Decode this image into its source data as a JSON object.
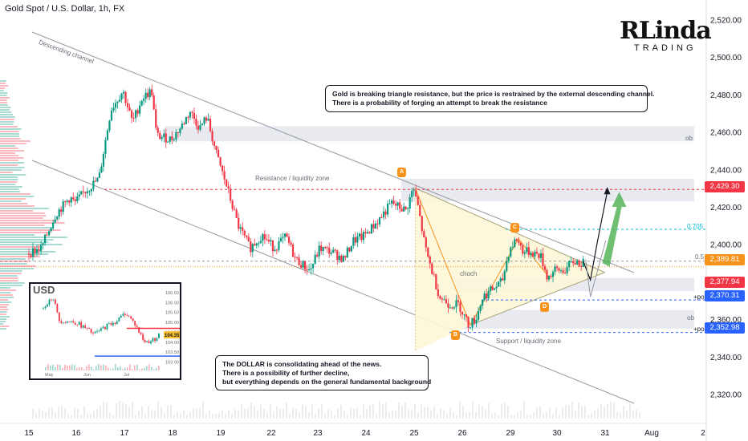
{
  "header": {
    "title": "Gold Spot / U.S. Dollar, 1h, FX"
  },
  "logo": {
    "main": "RLinda",
    "sub": "TRADING"
  },
  "colors": {
    "bull": "#089981",
    "bear": "#f23645",
    "triangle_fill": "#fdf7d8",
    "zone_fill": "#e0e3eb",
    "accent_orange": "#f7931a",
    "blue": "#2962ff",
    "green_arrow": "#4caf50"
  },
  "callouts": {
    "gold": {
      "line1": "Gold is breaking triangle resistance, but the price is restrained by the external descending channel.",
      "line2": "There is a probability of forging an attempt to break the resistance"
    },
    "dollar": {
      "line1": "The DOLLAR is consolidating ahead of the news.",
      "line2": "There is a possibility of further decline,",
      "line3": "but everything depends on the general fundamental background"
    }
  },
  "annotations": {
    "channel": "Descending channel",
    "resistance": "Resistance / liquidity zone",
    "support": "Support / liquidity zone",
    "choch": "choch",
    "ob1": "ob",
    "ob2": "ob",
    "fib_705": "0.705",
    "fib_05": "0.5",
    "poi1": "+poi",
    "poi2": "+poi",
    "point_a": "A",
    "point_b": "B",
    "point_c": "C",
    "point_d": "D"
  },
  "price_tags": [
    {
      "value": "2,429.30",
      "color": "#f23645"
    },
    {
      "value": "2,389.81",
      "color": "#f7931a"
    },
    {
      "value": "2,377.94",
      "color": "#f23645"
    },
    {
      "value": "2,370.31",
      "color": "#2962ff"
    },
    {
      "value": "2,352.98",
      "color": "#2962ff"
    }
  ],
  "inset": {
    "title": "USD",
    "price_tag": "104.35",
    "y_ticks": [
      "106.50",
      "106.00",
      "105.50",
      "105.00",
      "104.50",
      "104.00",
      "103.50",
      "103.00"
    ],
    "x_ticks": [
      "May",
      "Jun",
      "Jul"
    ]
  },
  "chart_data": {
    "type": "candlestick",
    "title": "Gold Spot / U.S. Dollar, 1h, FX",
    "x_ticks": [
      "15",
      "16",
      "17",
      "18",
      "19",
      "22",
      "23",
      "24",
      "25",
      "26",
      "29",
      "30",
      "31",
      "Aug",
      "2"
    ],
    "y_ticks": [
      2320,
      2340,
      2360,
      2380,
      2400,
      2420,
      2440,
      2460,
      2480,
      2500,
      2520
    ],
    "ylim": [
      2307,
      2527
    ],
    "price_path": [
      [
        0,
        2395
      ],
      [
        0.3,
        2398
      ],
      [
        0.6,
        2416
      ],
      [
        0.9,
        2425
      ],
      [
        1.0,
        2422
      ],
      [
        1.2,
        2428
      ],
      [
        1.5,
        2435
      ],
      [
        1.75,
        2472
      ],
      [
        2.0,
        2482
      ],
      [
        2.2,
        2465
      ],
      [
        2.4,
        2478
      ],
      [
        2.6,
        2482
      ],
      [
        2.7,
        2458
      ],
      [
        3.0,
        2456
      ],
      [
        3.2,
        2462
      ],
      [
        3.4,
        2471
      ],
      [
        3.6,
        2462
      ],
      [
        3.75,
        2468
      ],
      [
        3.95,
        2448
      ],
      [
        4.15,
        2432
      ],
      [
        4.4,
        2410
      ],
      [
        4.65,
        2398
      ],
      [
        4.9,
        2405
      ],
      [
        5.15,
        2398
      ],
      [
        5.4,
        2404
      ],
      [
        5.6,
        2392
      ],
      [
        5.9,
        2386
      ],
      [
        6.1,
        2398
      ],
      [
        6.35,
        2396
      ],
      [
        6.6,
        2392
      ],
      [
        6.8,
        2402
      ],
      [
        7.0,
        2404
      ],
      [
        7.3,
        2412
      ],
      [
        7.6,
        2422
      ],
      [
        7.9,
        2418
      ],
      [
        8.05,
        2430
      ],
      [
        8.15,
        2420
      ],
      [
        8.3,
        2398
      ],
      [
        8.45,
        2385
      ],
      [
        8.6,
        2372
      ],
      [
        8.8,
        2368
      ],
      [
        9.0,
        2368
      ],
      [
        9.2,
        2357
      ],
      [
        9.35,
        2360
      ],
      [
        9.5,
        2372
      ],
      [
        9.7,
        2376
      ],
      [
        9.9,
        2380
      ],
      [
        10.05,
        2397
      ],
      [
        10.2,
        2403
      ],
      [
        10.35,
        2396
      ],
      [
        10.5,
        2396
      ],
      [
        10.7,
        2394
      ],
      [
        10.85,
        2382
      ],
      [
        11.0,
        2386
      ],
      [
        11.2,
        2386
      ],
      [
        11.4,
        2391
      ],
      [
        11.55,
        2389.81
      ]
    ],
    "levels": [
      {
        "price": 2429.3,
        "label": "Resistance / liquidity zone"
      },
      {
        "price": 2408,
        "label": "0.705"
      },
      {
        "price": 2391,
        "label": "0.5"
      },
      {
        "price": 2370.31,
        "label": "+poi"
      },
      {
        "price": 2352.98,
        "label": "+poi"
      }
    ],
    "zones": [
      {
        "from": 2455,
        "to": 2463,
        "label": "ob"
      },
      {
        "from": 2423,
        "to": 2435,
        "label": ""
      },
      {
        "from": 2375,
        "to": 2382,
        "label": "choch"
      },
      {
        "from": 2355,
        "to": 2365,
        "label": "ob"
      }
    ],
    "points": [
      {
        "label": "A",
        "x": 8.05,
        "price": 2430
      },
      {
        "label": "B",
        "x": 9.2,
        "price": 2357
      },
      {
        "label": "C",
        "x": 10.2,
        "price": 2403
      },
      {
        "label": "D",
        "x": 10.85,
        "price": 2382
      }
    ],
    "projection": [
      [
        11.55,
        2391
      ],
      [
        11.7,
        2381
      ],
      [
        11.85,
        2402
      ],
      [
        12.05,
        2428
      ]
    ],
    "inset_chart": {
      "name": "USD",
      "ylim": [
        102.9,
        106.7
      ],
      "close_path": [
        [
          0,
          105.7
        ],
        [
          0.1,
          106.3
        ],
        [
          0.15,
          105.1
        ],
        [
          0.3,
          105.0
        ],
        [
          0.45,
          104.4
        ],
        [
          0.55,
          104.8
        ],
        [
          0.65,
          105.1
        ],
        [
          0.72,
          105.5
        ],
        [
          0.8,
          104.9
        ],
        [
          0.88,
          104.0
        ],
        [
          0.95,
          104.1
        ],
        [
          1.0,
          104.35
        ]
      ]
    }
  }
}
